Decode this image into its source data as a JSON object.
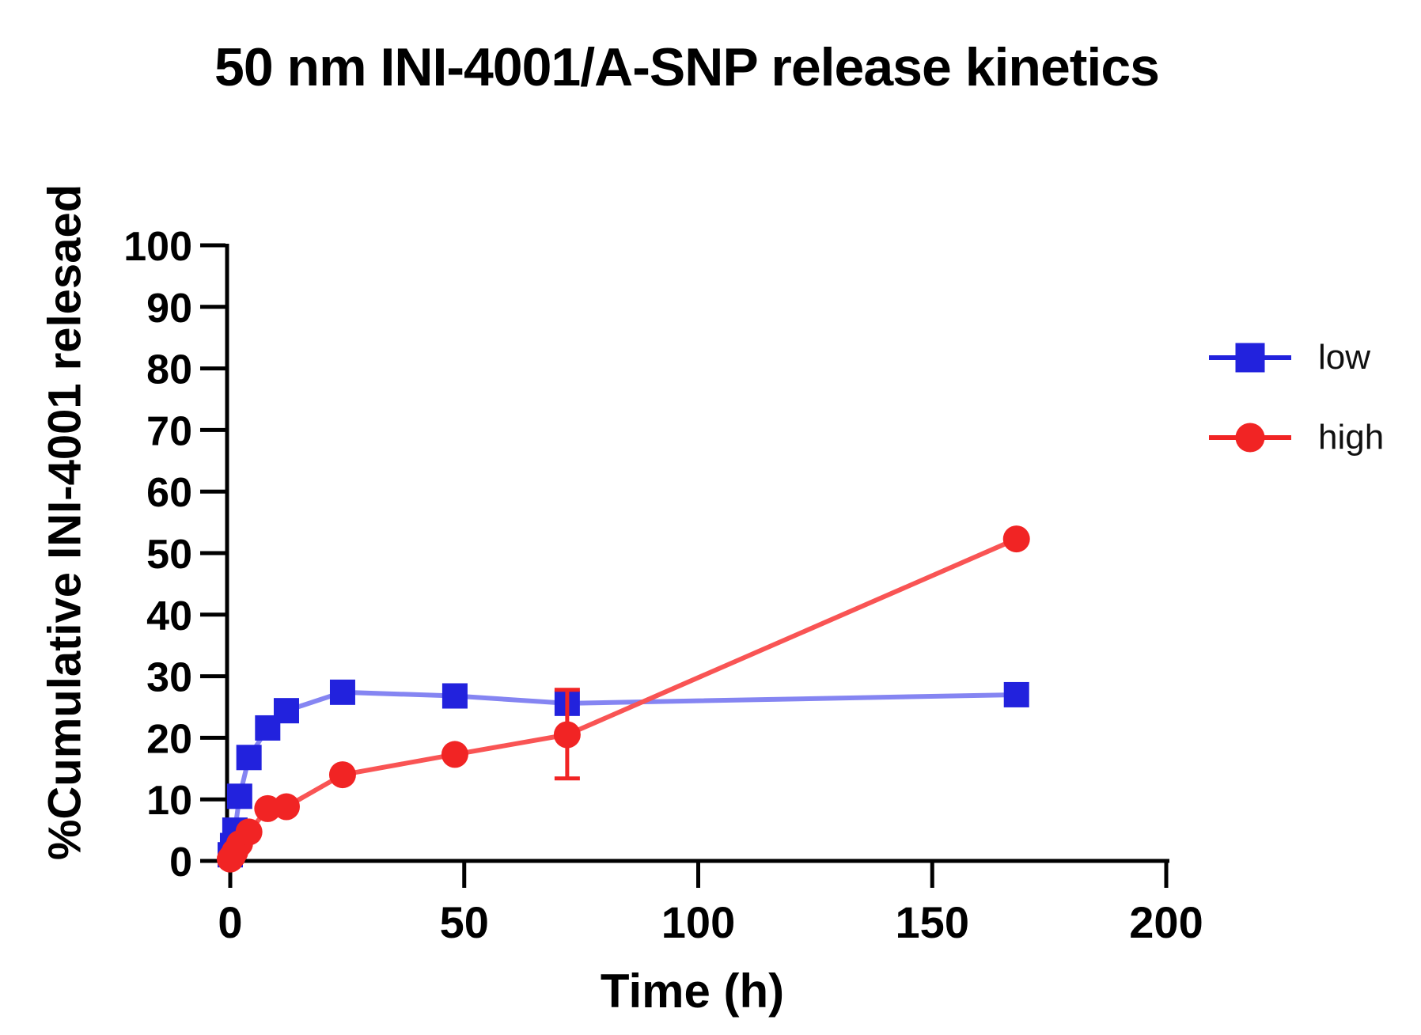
{
  "chart_data": {
    "type": "line",
    "title": "50 nm INI-4001/A-SNP release kinetics",
    "xlabel": "Time (h)",
    "ylabel": "%Cumulative INI-4001 relesaed",
    "xlim": [
      0,
      200
    ],
    "ylim": [
      0,
      100
    ],
    "x_ticks": [
      0,
      50,
      100,
      150,
      200
    ],
    "y_ticks": [
      0,
      10,
      20,
      30,
      40,
      50,
      60,
      70,
      80,
      90,
      100
    ],
    "grid": false,
    "legend_position": "right",
    "axis_color": "#000000",
    "background": "#ffffff",
    "x": [
      0,
      0.5,
      1,
      2,
      4,
      8,
      12,
      24,
      48,
      72,
      168
    ],
    "series": [
      {
        "name": "low",
        "marker": "square",
        "color": "#2222dd",
        "line_color": "#8585f2",
        "values": [
          1,
          2.5,
          5,
          10.5,
          16.8,
          21.6,
          24.4,
          27.4,
          26.8,
          25.6,
          27
        ]
      },
      {
        "name": "high",
        "marker": "circle",
        "color": "#f12424",
        "line_color": "#f95454",
        "values": [
          0.3,
          0.8,
          1.5,
          2.8,
          4.7,
          8.5,
          8.8,
          14,
          17.3,
          20.5,
          52.3
        ]
      }
    ],
    "error_bars": [
      {
        "series": "high",
        "x": 72,
        "y": 20.5,
        "plus": 7.3,
        "minus": 7.1
      }
    ]
  }
}
